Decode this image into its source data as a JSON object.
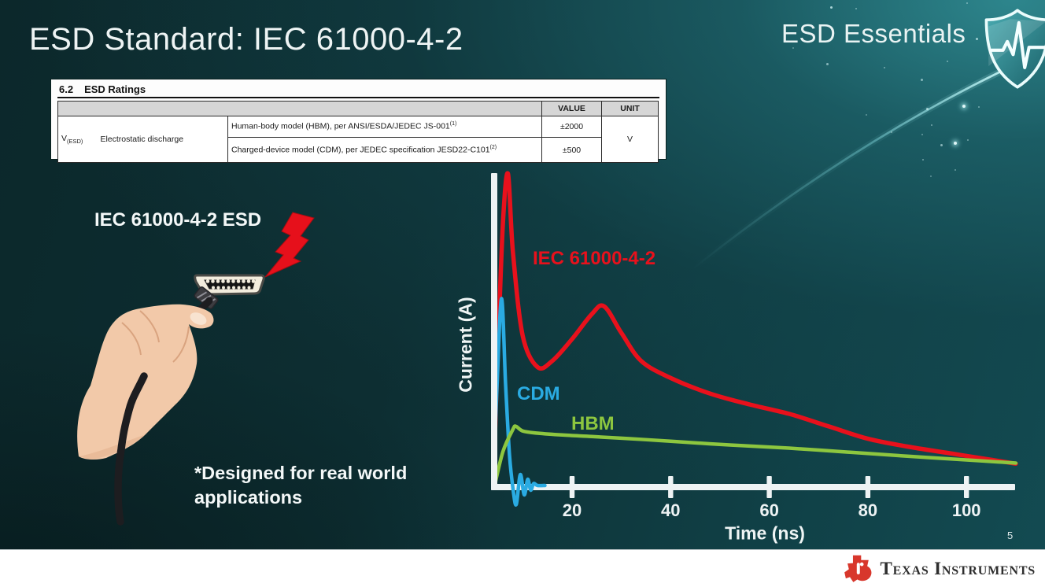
{
  "slide": {
    "title": "ESD Standard: IEC 61000-4-2",
    "program_badge": "ESD Essentials",
    "page_number": "5",
    "footer_brand": "Texas Instruments"
  },
  "ratings_table": {
    "section_number": "6.2",
    "section_title": "ESD Ratings",
    "value_header": "VALUE",
    "unit_header": "UNIT",
    "symbol": "V",
    "symbol_subscript": "(ESD)",
    "parameter": "Electrostatic discharge",
    "rows": [
      {
        "description": "Human-body model (HBM), per ANSI/ESDA/JEDEC JS-001",
        "footnote": "(1)",
        "value": "±2000"
      },
      {
        "description": "Charged-device model (CDM), per JEDEC specification JESD22-C101",
        "footnote": "(2)",
        "value": "±500"
      }
    ],
    "unit": "V"
  },
  "illustration": {
    "label": "IEC 61000-4-2 ESD",
    "caption": "*Designed for real world applications",
    "bolt_color": "#e6101b"
  },
  "chart_data": {
    "type": "line",
    "title": "",
    "xlabel": "Time (ns)",
    "ylabel": "Current (A)",
    "x_ticks": [
      20,
      40,
      60,
      80,
      100
    ],
    "x_range_ns": [
      0,
      112
    ],
    "y_axis_note": "unlabeled axis, relative current amplitude (IEC peak = 1.0)",
    "grid": false,
    "legend_position": "inline-curve-labels",
    "series": [
      {
        "name": "IEC 61000-4-2",
        "color": "#e8111c",
        "width": 5.5,
        "x": [
          4,
          5,
          6,
          7,
          8,
          10,
          13,
          16,
          20,
          24,
          26.5,
          30,
          34,
          40,
          48,
          56,
          64,
          72,
          80,
          88,
          96,
          104,
          110
        ],
        "y": [
          0,
          0.45,
          0.85,
          1.0,
          0.75,
          0.48,
          0.38,
          0.4,
          0.47,
          0.55,
          0.575,
          0.49,
          0.4,
          0.345,
          0.295,
          0.26,
          0.23,
          0.19,
          0.15,
          0.125,
          0.105,
          0.085,
          0.07
        ]
      },
      {
        "name": "CDM",
        "color": "#2aabe2",
        "width": 4.5,
        "x": [
          4,
          4.8,
          5.7,
          6.5,
          7.3,
          8.1,
          8.7,
          9.5,
          10.3,
          11,
          11.6,
          12.2,
          13,
          14.5
        ],
        "y": [
          0,
          0.33,
          0.6,
          0.33,
          0.1,
          -0.02,
          -0.06,
          0.035,
          -0.03,
          0.02,
          -0.015,
          0.006,
          0,
          0
        ]
      },
      {
        "name": "HBM",
        "color": "#8dc63f",
        "width": 4.5,
        "x": [
          4.3,
          6,
          8,
          8.6,
          10,
          13,
          18,
          24,
          32,
          40,
          52,
          64,
          76,
          88,
          100,
          110
        ],
        "y": [
          0,
          0.11,
          0.18,
          0.19,
          0.175,
          0.168,
          0.162,
          0.157,
          0.15,
          0.142,
          0.13,
          0.12,
          0.107,
          0.094,
          0.082,
          0.072
        ]
      }
    ]
  },
  "colors": {
    "background_base": "#0d2e32",
    "background_highlight": "#2f8990",
    "axis": "#eef3f4",
    "ti_red": "#d8372c",
    "shield_teal": "#2f8e96",
    "text_light": "#eef4f4"
  }
}
